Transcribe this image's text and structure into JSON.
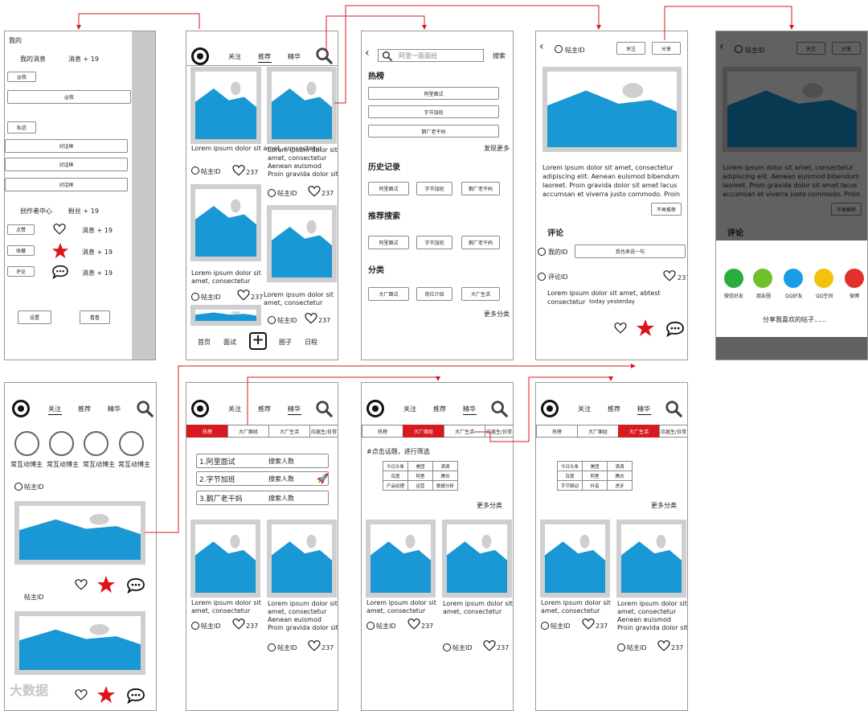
{
  "colors": {
    "accent": "#d71a20",
    "image_blue": "#1a97d5",
    "frame_gray": "#cfcfcf"
  },
  "icons": [
    "logo-icon",
    "search-icon",
    "heart-icon",
    "star-icon",
    "comment-icon",
    "rocket-icon",
    "back-icon",
    "plus-icon",
    "wechat-icon",
    "moments-icon",
    "qq-icon",
    "qzone-icon",
    "weibo-icon"
  ],
  "common": {
    "nav": {
      "follow": "关注",
      "recommend": "推荐",
      "featured": "精华"
    },
    "lorem_short": "Lorem ipsum dolor sit amet, consectetur",
    "lorem_long": "Lorem ipsum dolor sit amet, consectetur Aenean euismod Proin gravida dolor sit",
    "poster": "帖主ID",
    "likes": "237",
    "bottom_nav": {
      "home": "首页",
      "interview": "面试",
      "circle": "圈子",
      "schedule": "日程"
    },
    "tabs": [
      "热榜",
      "大厂面经",
      "大厂生活",
      "应届生/日常"
    ]
  },
  "screen_me": {
    "title": "我的",
    "messages": "我的消息",
    "messages_count": "消息 + 19",
    "at_btn": "@我",
    "at_row": "@我",
    "private_btn": "私信",
    "dialog": "对话框",
    "creator": "创作者中心",
    "fans": "粉丝 + 19",
    "like_btn": "点赞",
    "fav_btn": "收藏",
    "comment_btn": "评论",
    "settings": "设置",
    "history": "看看"
  },
  "screen_search": {
    "placeholder": "阿里一面面经",
    "search_btn": "搜索",
    "hot": "热榜",
    "hot_items": [
      "阿里面试",
      "字节加班",
      "鹅厂老干妈"
    ],
    "discover_more": "发现更多",
    "history": "历史记录",
    "history_items": [
      "阿里面试",
      "字节加班",
      "鹅厂老干妈"
    ],
    "recommend": "推荐搜索",
    "recommend_items": [
      "阿里面试",
      "字节加班",
      "鹅厂老干妈"
    ],
    "category": "分类",
    "category_items": [
      "大厂面试",
      "岗位介绍",
      "大厂生活"
    ],
    "more_category": "更多分类"
  },
  "screen_detail": {
    "follow_btn": "关注",
    "share_btn": "分享",
    "body": "Lorem ipsum dolor sit amet, consectetur adipiscing elit. Aenean euismod bibendum laoreet. Proin gravida dolor sit amet lacus accumsan et viverra justo commodo. Proin",
    "not_recommend": "不再推荐",
    "comments_title": "评论",
    "my_id": "我的ID",
    "comment_placeholder": "我也来说一句",
    "commenter": "评论ID",
    "comment_text": "Lorem ipsum dolor sit amet,  abtest consectetur",
    "comment_time": "today yesterday"
  },
  "screen_share": {
    "targets": [
      "微信好友",
      "朋友圈",
      "QQ好友",
      "QQ空间",
      "微博"
    ],
    "caption": "分享我喜欢的帖子......"
  },
  "screen_follow": {
    "user_label": "常互动博主"
  },
  "screen_hot": {
    "items": [
      "1.阿里面试",
      "2.字节加班",
      "3.鹅厂老干妈"
    ],
    "count_label": "搜索人数"
  },
  "screen_filter": {
    "hint": "#点击话题，进行筛选",
    "grid_mianjing": [
      [
        "今日头条",
        "美团",
        "滴滴"
      ],
      [
        "百度",
        "阿里",
        "腾讯"
      ],
      [
        "产品经理",
        "运营",
        "数据分析"
      ]
    ],
    "grid_life": [
      [
        "今日头条",
        "美团",
        "滴滴"
      ],
      [
        "百度",
        "阿里",
        "腾讯"
      ],
      [
        "字节跳动",
        "抖音",
        "虎牙"
      ]
    ],
    "more": "更多分类"
  },
  "watermark": "大数据"
}
